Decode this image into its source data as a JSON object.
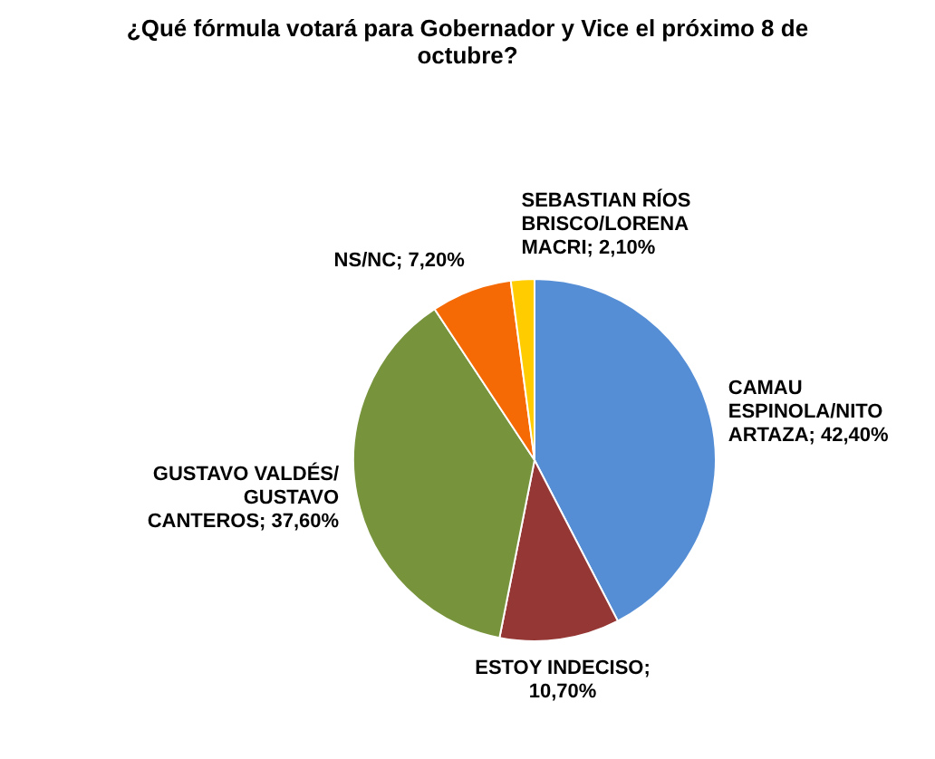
{
  "chart_data": {
    "type": "pie",
    "title": "¿Qué fórmula votará para Gobernador y Vice el próximo 8 de octubre?",
    "categories": [
      "CAMAU ESPINOLA/NITO ARTAZA; 42,40%",
      "ESTOY INDECISO; 10,70%",
      "GUSTAVO VALDÉS/ GUSTAVO CANTEROS; 37,60%",
      "NS/NC; 7,20%",
      "SEBASTIAN  RÍOS BRISCO/LORENA MACRI; 2,10%"
    ],
    "values": [
      42.4,
      10.7,
      37.6,
      7.2,
      2.1
    ],
    "colors": [
      "#558ed5",
      "#953735",
      "#77933c",
      "#f56a05",
      "#ffcc00"
    ],
    "legend": false
  }
}
